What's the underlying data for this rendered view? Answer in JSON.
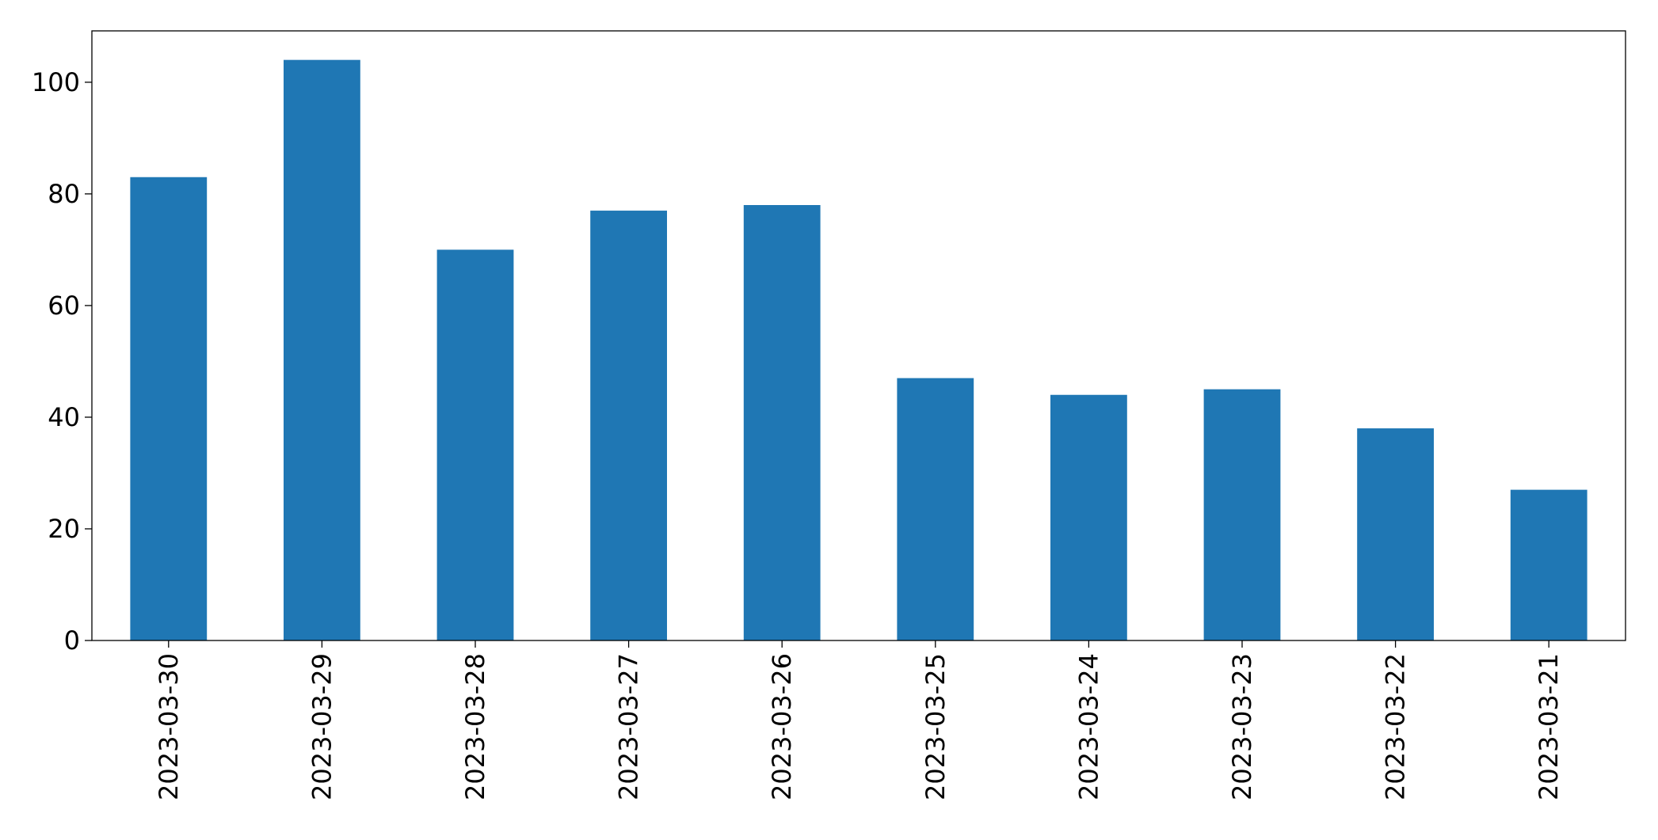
{
  "chart_data": {
    "type": "bar",
    "categories": [
      "2023-03-30",
      "2023-03-29",
      "2023-03-28",
      "2023-03-27",
      "2023-03-26",
      "2023-03-25",
      "2023-03-24",
      "2023-03-23",
      "2023-03-22",
      "2023-03-21"
    ],
    "values": [
      83,
      104,
      70,
      77,
      78,
      47,
      44,
      45,
      38,
      27
    ],
    "color": "#1f77b4",
    "ylim": [
      0,
      109.2
    ],
    "yticks": [
      0,
      20,
      40,
      60,
      80,
      100
    ],
    "grid": false
  }
}
